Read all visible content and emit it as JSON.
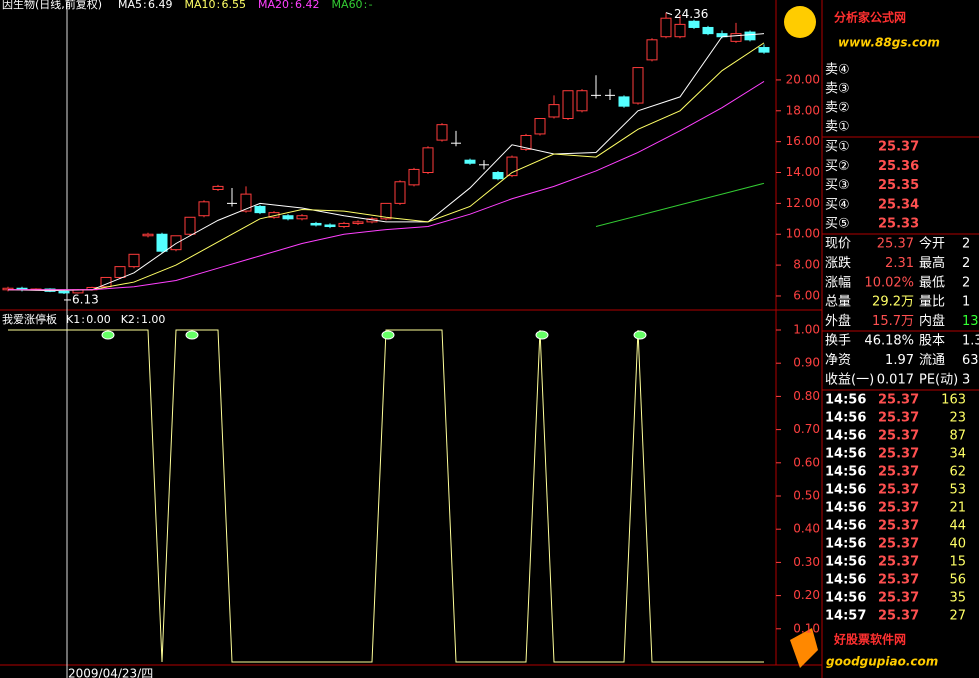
{
  "chart_data": [
    {
      "type": "candlestick",
      "title": "因生物(日线,前复权)",
      "open": [
        6.4,
        6.5,
        6.4,
        6.45,
        6.3,
        6.2,
        6.4,
        6.6,
        7.2,
        7.9,
        9.9,
        10.0,
        9.0,
        10.0,
        11.2,
        12.9,
        12.0,
        11.5,
        11.8,
        11.1,
        11.2,
        11.0,
        10.7,
        10.6,
        10.5,
        10.7,
        10.8,
        11.0,
        12.0,
        13.2,
        14.0,
        16.1,
        15.9,
        14.8,
        14.5,
        14.0,
        13.8,
        15.5,
        16.5,
        17.6,
        17.5,
        18.0,
        19.0,
        19.0,
        18.9,
        18.5,
        21.3,
        22.8,
        22.8,
        23.8,
        23.4,
        23.0,
        22.5,
        23.1,
        22.1
      ],
      "close": [
        6.5,
        6.4,
        6.45,
        6.3,
        6.2,
        6.4,
        6.55,
        7.2,
        7.9,
        8.7,
        10.0,
        8.9,
        9.9,
        11.1,
        12.1,
        13.1,
        12.0,
        12.6,
        11.4,
        11.4,
        11.0,
        11.2,
        10.6,
        10.5,
        10.7,
        10.8,
        11.0,
        12.0,
        13.4,
        14.2,
        15.6,
        17.1,
        15.9,
        14.6,
        14.5,
        13.6,
        15.0,
        16.4,
        17.5,
        18.4,
        19.3,
        19.3,
        19.0,
        19.0,
        18.3,
        20.8,
        22.6,
        24.0,
        23.6,
        23.4,
        23.0,
        22.8,
        23.0,
        22.6,
        21.8
      ],
      "high": [
        6.6,
        6.6,
        6.5,
        6.5,
        6.35,
        6.45,
        6.6,
        7.2,
        7.9,
        8.7,
        10.1,
        10.1,
        9.9,
        11.1,
        12.2,
        13.2,
        13.0,
        13.1,
        11.9,
        11.5,
        11.3,
        11.3,
        10.8,
        10.7,
        10.8,
        10.9,
        11.1,
        12.0,
        13.5,
        14.3,
        15.7,
        17.2,
        16.7,
        14.9,
        14.8,
        14.1,
        15.1,
        16.5,
        17.5,
        19.0,
        19.3,
        19.4,
        20.3,
        19.4,
        19.0,
        20.8,
        22.7,
        24.36,
        24.2,
        23.9,
        23.5,
        23.2,
        23.7,
        23.2,
        22.3
      ],
      "low": [
        6.3,
        6.3,
        6.35,
        6.25,
        6.13,
        6.15,
        6.35,
        6.5,
        7.1,
        7.8,
        9.8,
        8.8,
        8.9,
        9.9,
        11.1,
        12.8,
        11.8,
        11.4,
        11.3,
        11.0,
        10.9,
        10.9,
        10.5,
        10.4,
        10.4,
        10.6,
        10.7,
        10.9,
        11.9,
        13.1,
        13.9,
        16.0,
        15.7,
        14.5,
        14.2,
        13.5,
        13.7,
        15.4,
        16.4,
        17.5,
        17.4,
        17.9,
        18.8,
        18.7,
        18.2,
        18.4,
        21.2,
        22.7,
        22.7,
        23.3,
        22.9,
        22.7,
        22.4,
        22.5,
        21.7
      ],
      "up_color": "#ff3c3c",
      "down_color": "#54ffff",
      "flat_color": "#ffffff",
      "ma_x": [
        0,
        3,
        6,
        9,
        12,
        15,
        18,
        21,
        24,
        27,
        30,
        33,
        36,
        39,
        42,
        45,
        48,
        51,
        54
      ],
      "series": [
        {
          "name": "MA5",
          "value": "6.49",
          "color": "#ffffff",
          "values": [
            6.4,
            6.35,
            6.4,
            7.5,
            9.4,
            10.9,
            12.0,
            11.7,
            11.2,
            10.8,
            10.8,
            13.0,
            15.8,
            15.2,
            15.3,
            18.0,
            18.9,
            22.8,
            23.0
          ]
        },
        {
          "name": "MA10",
          "value": "6.55",
          "color": "#ffff66",
          "values": [
            6.4,
            6.4,
            6.4,
            6.9,
            8.0,
            9.5,
            11.0,
            11.6,
            11.5,
            11.1,
            10.8,
            11.8,
            14.0,
            15.2,
            15.0,
            16.8,
            18.0,
            20.6,
            22.4
          ]
        },
        {
          "name": "MA20",
          "value": "6.42",
          "color": "#ff40ff",
          "values": [
            6.4,
            6.4,
            6.4,
            6.6,
            7.0,
            7.8,
            8.6,
            9.4,
            10.0,
            10.3,
            10.5,
            11.3,
            12.3,
            13.1,
            14.1,
            15.3,
            16.7,
            18.2,
            19.9
          ]
        },
        {
          "name": "MA60",
          "value": "-",
          "color": "#33cc33",
          "values": [
            null,
            null,
            null,
            null,
            null,
            null,
            null,
            null,
            null,
            null,
            null,
            null,
            null,
            null,
            10.5,
            11.2,
            11.9,
            12.6,
            13.3
          ]
        }
      ],
      "annotations": [
        {
          "value": 24.36,
          "bar": 47
        },
        {
          "value": 6.13,
          "bar": 4
        }
      ],
      "ylim": [
        5.22,
        25.05
      ],
      "yticks": [
        {
          "value": 6,
          "label": "6.00"
        },
        {
          "value": 8,
          "label": "8.00"
        },
        {
          "value": 10,
          "label": "10.00"
        },
        {
          "value": 12,
          "label": "12.00"
        },
        {
          "value": 14,
          "label": "14.00"
        },
        {
          "value": 16,
          "label": "16.00"
        },
        {
          "value": 18,
          "label": "18.00"
        },
        {
          "value": 20,
          "label": "20.00"
        }
      ],
      "x_label": "2009/04/23/四"
    },
    {
      "type": "line",
      "title": "我爱涨停板",
      "legend": [
        {
          "name": "K1",
          "value": "0.00"
        },
        {
          "name": "K2",
          "value": "1.00"
        }
      ],
      "series": [
        {
          "name": "K2",
          "color": "#ffff99",
          "values": [
            1,
            1,
            1,
            1,
            1,
            1,
            1,
            1,
            1,
            1,
            1,
            0,
            1,
            1,
            1,
            1,
            0,
            0,
            0,
            0,
            0,
            0,
            0,
            0,
            0,
            0,
            0,
            1,
            1,
            1,
            1,
            1,
            0,
            0,
            0,
            0,
            0,
            0,
            1,
            0,
            0,
            0,
            0,
            0,
            0,
            1,
            0,
            0,
            0,
            0,
            0,
            0,
            0,
            0,
            0
          ]
        }
      ],
      "signal_bars": [
        7,
        13,
        27,
        38,
        45
      ],
      "ylim": [
        0,
        1
      ],
      "yticks": [
        {
          "value": 0.1,
          "label": "0.10"
        },
        {
          "value": 0.2,
          "label": "0.20"
        },
        {
          "value": 0.3,
          "label": "0.30"
        },
        {
          "value": 0.4,
          "label": "0.40"
        },
        {
          "value": 0.5,
          "label": "0.50"
        },
        {
          "value": 0.6,
          "label": "0.60"
        },
        {
          "value": 0.7,
          "label": "0.70"
        },
        {
          "value": 0.8,
          "label": "0.80"
        },
        {
          "value": 0.9,
          "label": "0.90"
        },
        {
          "value": 1,
          "label": "1.00"
        }
      ]
    }
  ],
  "quote_panel": {
    "sell": [
      "卖④",
      "卖③",
      "卖②",
      "卖①"
    ],
    "buy": [
      [
        "买①",
        "25.37"
      ],
      [
        "买②",
        "25.36"
      ],
      [
        "买③",
        "25.35"
      ],
      [
        "买④",
        "25.34"
      ],
      [
        "买⑤",
        "25.33"
      ]
    ],
    "stats": [
      [
        "现价",
        "25.37",
        "今开",
        "2"
      ],
      [
        "涨跌",
        "2.31",
        "最高",
        "2"
      ],
      [
        "涨幅",
        "10.02%",
        "最低",
        "2"
      ],
      [
        "总量",
        "29.2万",
        "量比",
        "1"
      ],
      [
        "外盘",
        "15.7万",
        "内盘",
        "13"
      ],
      [
        "换手",
        "46.18%",
        "股本",
        "1.3"
      ],
      [
        "净资",
        "1.97",
        "流通",
        "63"
      ],
      [
        "收益(一)",
        "0.017",
        "PE(动)",
        "3"
      ]
    ],
    "stat_colors": [
      "#ff5050",
      "#ff5050",
      "#ff5050",
      "#ffff66",
      "#ff5050",
      "#ffffff",
      "#ffffff",
      "#ffffff"
    ],
    "ticks": [
      [
        "14:56",
        "25.37",
        "163"
      ],
      [
        "14:56",
        "25.37",
        "23"
      ],
      [
        "14:56",
        "25.37",
        "87"
      ],
      [
        "14:56",
        "25.37",
        "34"
      ],
      [
        "14:56",
        "25.37",
        "62"
      ],
      [
        "14:56",
        "25.37",
        "53"
      ],
      [
        "14:56",
        "25.37",
        "21"
      ],
      [
        "14:56",
        "25.37",
        "44"
      ],
      [
        "14:56",
        "25.37",
        "40"
      ],
      [
        "14:56",
        "25.37",
        "15"
      ],
      [
        "14:56",
        "25.37",
        "56"
      ],
      [
        "14:56",
        "25.37",
        "35"
      ],
      [
        "14:57",
        "25.37",
        "27"
      ]
    ]
  },
  "logos": [
    {
      "title": "分析家公式网",
      "url": "www.88gs.com"
    },
    {
      "title": "好股票软件网",
      "url": "goodgupiao.com"
    }
  ]
}
